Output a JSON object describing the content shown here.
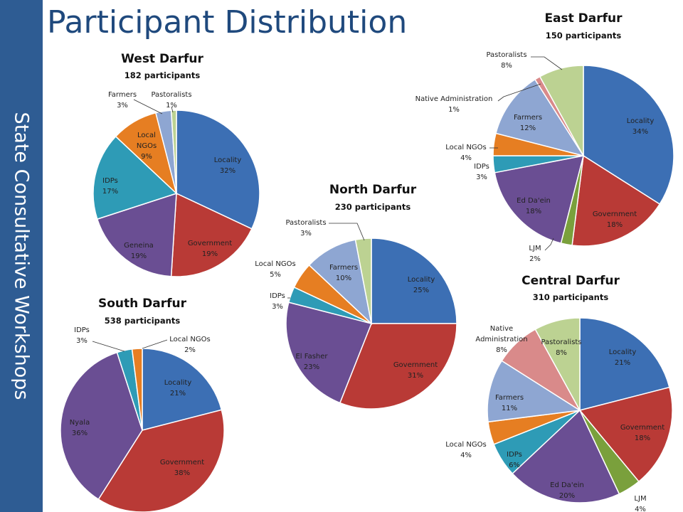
{
  "page": {
    "title": "Participant Distribution",
    "sidebar": "State Consultative Workshops"
  },
  "colors": {
    "Locality": "#3c6fb4",
    "Government": "#b93a36",
    "Geneina": "#6a4e93",
    "Nyala": "#6a4e93",
    "El Fasher": "#6a4e93",
    "Ed Da'ein": "#6a4e93",
    "IDPs": "#2e9bb6",
    "Local NGOs": "#e67e22",
    "Farmers": "#8ea6d2",
    "Pastoralists": "#bcd292",
    "Native Administration": "#d98a8a",
    "LJM": "#7aa03c",
    "sidebar": "#2e5c93",
    "title": "#1f497d"
  },
  "chart_data": [
    {
      "type": "pie",
      "title": "West Darfur",
      "subtitle": "182 participants",
      "slices": [
        {
          "label": "Locality",
          "value": 32,
          "text": "32%"
        },
        {
          "label": "Government",
          "value": 19,
          "text": "19%"
        },
        {
          "label": "Geneina",
          "value": 19,
          "text": "19%"
        },
        {
          "label": "IDPs",
          "value": 17,
          "text": "17%"
        },
        {
          "label": "Local NGOs",
          "value": 9,
          "text": "9%"
        },
        {
          "label": "Farmers",
          "value": 3,
          "text": "3%"
        },
        {
          "label": "Pastoralists",
          "value": 1,
          "text": "1%"
        }
      ]
    },
    {
      "type": "pie",
      "title": "East Darfur",
      "subtitle": "150 participants",
      "slices": [
        {
          "label": "Locality",
          "value": 34,
          "text": "34%"
        },
        {
          "label": "Government",
          "value": 18,
          "text": "18%"
        },
        {
          "label": "LJM",
          "value": 2,
          "text": "2%"
        },
        {
          "label": "Ed Da'ein",
          "value": 18,
          "text": "18%"
        },
        {
          "label": "IDPs",
          "value": 3,
          "text": "3%"
        },
        {
          "label": "Local NGOs",
          "value": 4,
          "text": "4%"
        },
        {
          "label": "Farmers",
          "value": 12,
          "text": "12%"
        },
        {
          "label": "Native Administration",
          "value": 1,
          "text": "1%"
        },
        {
          "label": "Pastoralists",
          "value": 8,
          "text": "8%"
        }
      ]
    },
    {
      "type": "pie",
      "title": "North Darfur",
      "subtitle": "230 participants",
      "slices": [
        {
          "label": "Locality",
          "value": 25,
          "text": "25%"
        },
        {
          "label": "Government",
          "value": 31,
          "text": "31%"
        },
        {
          "label": "El Fasher",
          "value": 23,
          "text": "23%"
        },
        {
          "label": "IDPs",
          "value": 3,
          "text": "3%"
        },
        {
          "label": "Local NGOs",
          "value": 5,
          "text": "5%"
        },
        {
          "label": "Farmers",
          "value": 10,
          "text": "10%"
        },
        {
          "label": "Pastoralists",
          "value": 3,
          "text": "3%"
        }
      ]
    },
    {
      "type": "pie",
      "title": "South Darfur",
      "subtitle": "538 participants",
      "slices": [
        {
          "label": "Locality",
          "value": 21,
          "text": "21%"
        },
        {
          "label": "Government",
          "value": 38,
          "text": "38%"
        },
        {
          "label": "Nyala",
          "value": 36,
          "text": "36%"
        },
        {
          "label": "IDPs",
          "value": 3,
          "text": "3%"
        },
        {
          "label": "Local NGOs",
          "value": 2,
          "text": "2%"
        }
      ]
    },
    {
      "type": "pie",
      "title": "Central Darfur",
      "subtitle": "310 participants",
      "slices": [
        {
          "label": "Locality",
          "value": 21,
          "text": "21%"
        },
        {
          "label": "Government",
          "value": 18,
          "text": "18%"
        },
        {
          "label": "LJM",
          "value": 4,
          "text": "4%"
        },
        {
          "label": "Ed Da'ein",
          "value": 20,
          "text": "20%"
        },
        {
          "label": "IDPs",
          "value": 6,
          "text": "6%"
        },
        {
          "label": "Local NGOs",
          "value": 4,
          "text": "4%"
        },
        {
          "label": "Farmers",
          "value": 11,
          "text": "11%"
        },
        {
          "label": "Native Administration",
          "value": 8,
          "text": "8%"
        },
        {
          "label": "Pastoralists",
          "value": 8,
          "text": "8%"
        }
      ]
    }
  ]
}
